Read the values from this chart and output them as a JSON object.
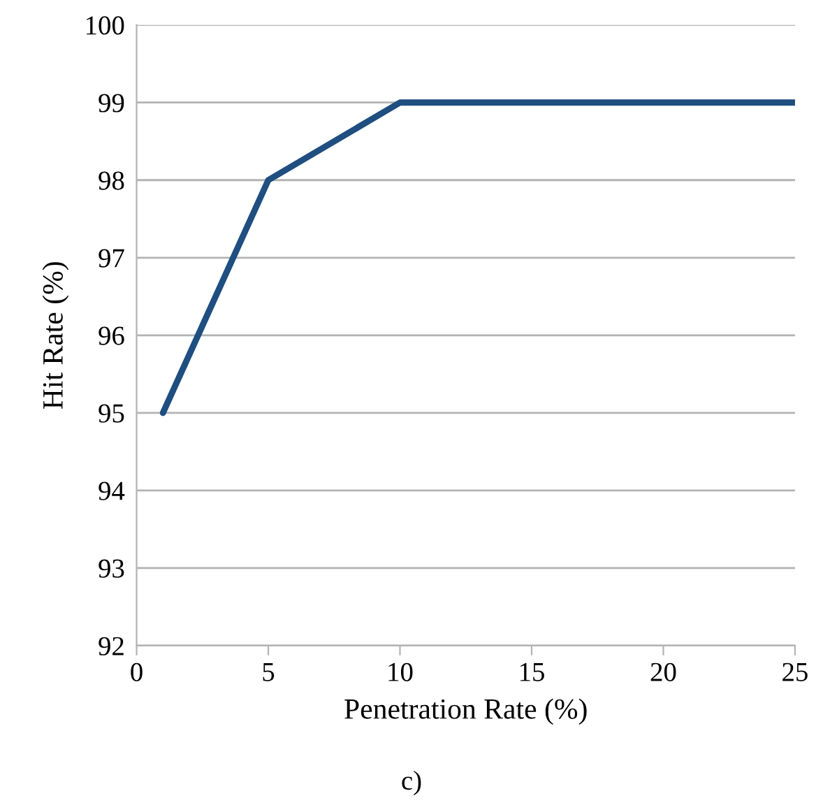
{
  "chart_data": {
    "type": "line",
    "xlabel": "Penetration Rate (%)",
    "ylabel": "Hit Rate (%)",
    "x": [
      1,
      5,
      10,
      25
    ],
    "series": [
      {
        "color": "#1f4e80",
        "values": [
          95,
          98,
          99,
          99
        ]
      }
    ],
    "xlim": [
      0,
      25
    ],
    "xticks": [
      0,
      5,
      10,
      15,
      20,
      25
    ],
    "ylim": [
      92,
      100
    ],
    "yticks": [
      92,
      93,
      94,
      95,
      96,
      97,
      98,
      99,
      100
    ],
    "grid": "y",
    "marker": "none",
    "line_style": "solid",
    "annotations": [
      "c)"
    ]
  }
}
